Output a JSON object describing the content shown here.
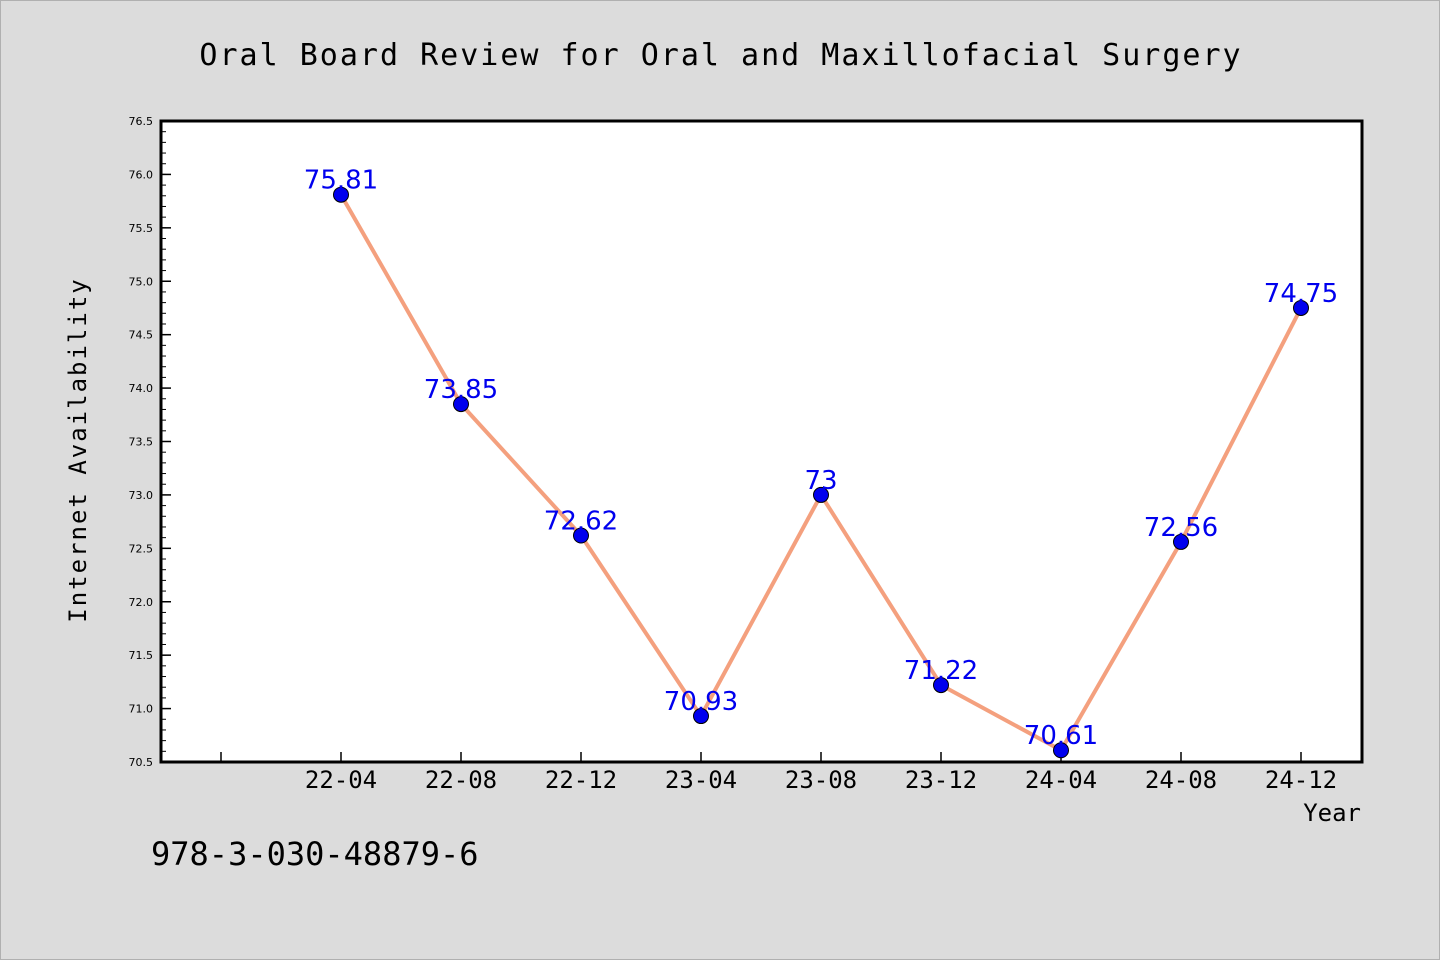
{
  "footer_text": "978-3-030-48879-6",
  "chart_data": {
    "type": "line",
    "title": "Oral Board Review for Oral and Maxillofacial Surgery",
    "xlabel": "Year",
    "ylabel": "Internet Availability",
    "categories": [
      "22-04",
      "22-08",
      "22-12",
      "23-04",
      "23-08",
      "23-12",
      "24-04",
      "24-08",
      "24-12"
    ],
    "series": [
      {
        "values": [
          75.81,
          73.85,
          72.62,
          70.93,
          73,
          71.22,
          70.61,
          72.56,
          74.75
        ],
        "data_labels": [
          "75.81",
          "73.85",
          "72.62",
          "70.93",
          "73",
          "71.22",
          "70.61",
          "72.56",
          "74.75"
        ],
        "line_color": "#f4a07e",
        "marker_color": "#0000ee",
        "label_color": "#0000ee"
      }
    ],
    "ylim": [
      70.5,
      76.5
    ],
    "yticks": [
      "70.5",
      "71.0",
      "71.5",
      "72.0",
      "72.5",
      "73.0",
      "73.5",
      "74.0",
      "74.5",
      "75.0",
      "75.5",
      "76.0",
      "76.5"
    ],
    "grid": false,
    "legend": false,
    "colors": {
      "background": "#dcdcdc",
      "plot_background": "#ffffff",
      "axis": "#000000",
      "text": "#000000"
    }
  }
}
